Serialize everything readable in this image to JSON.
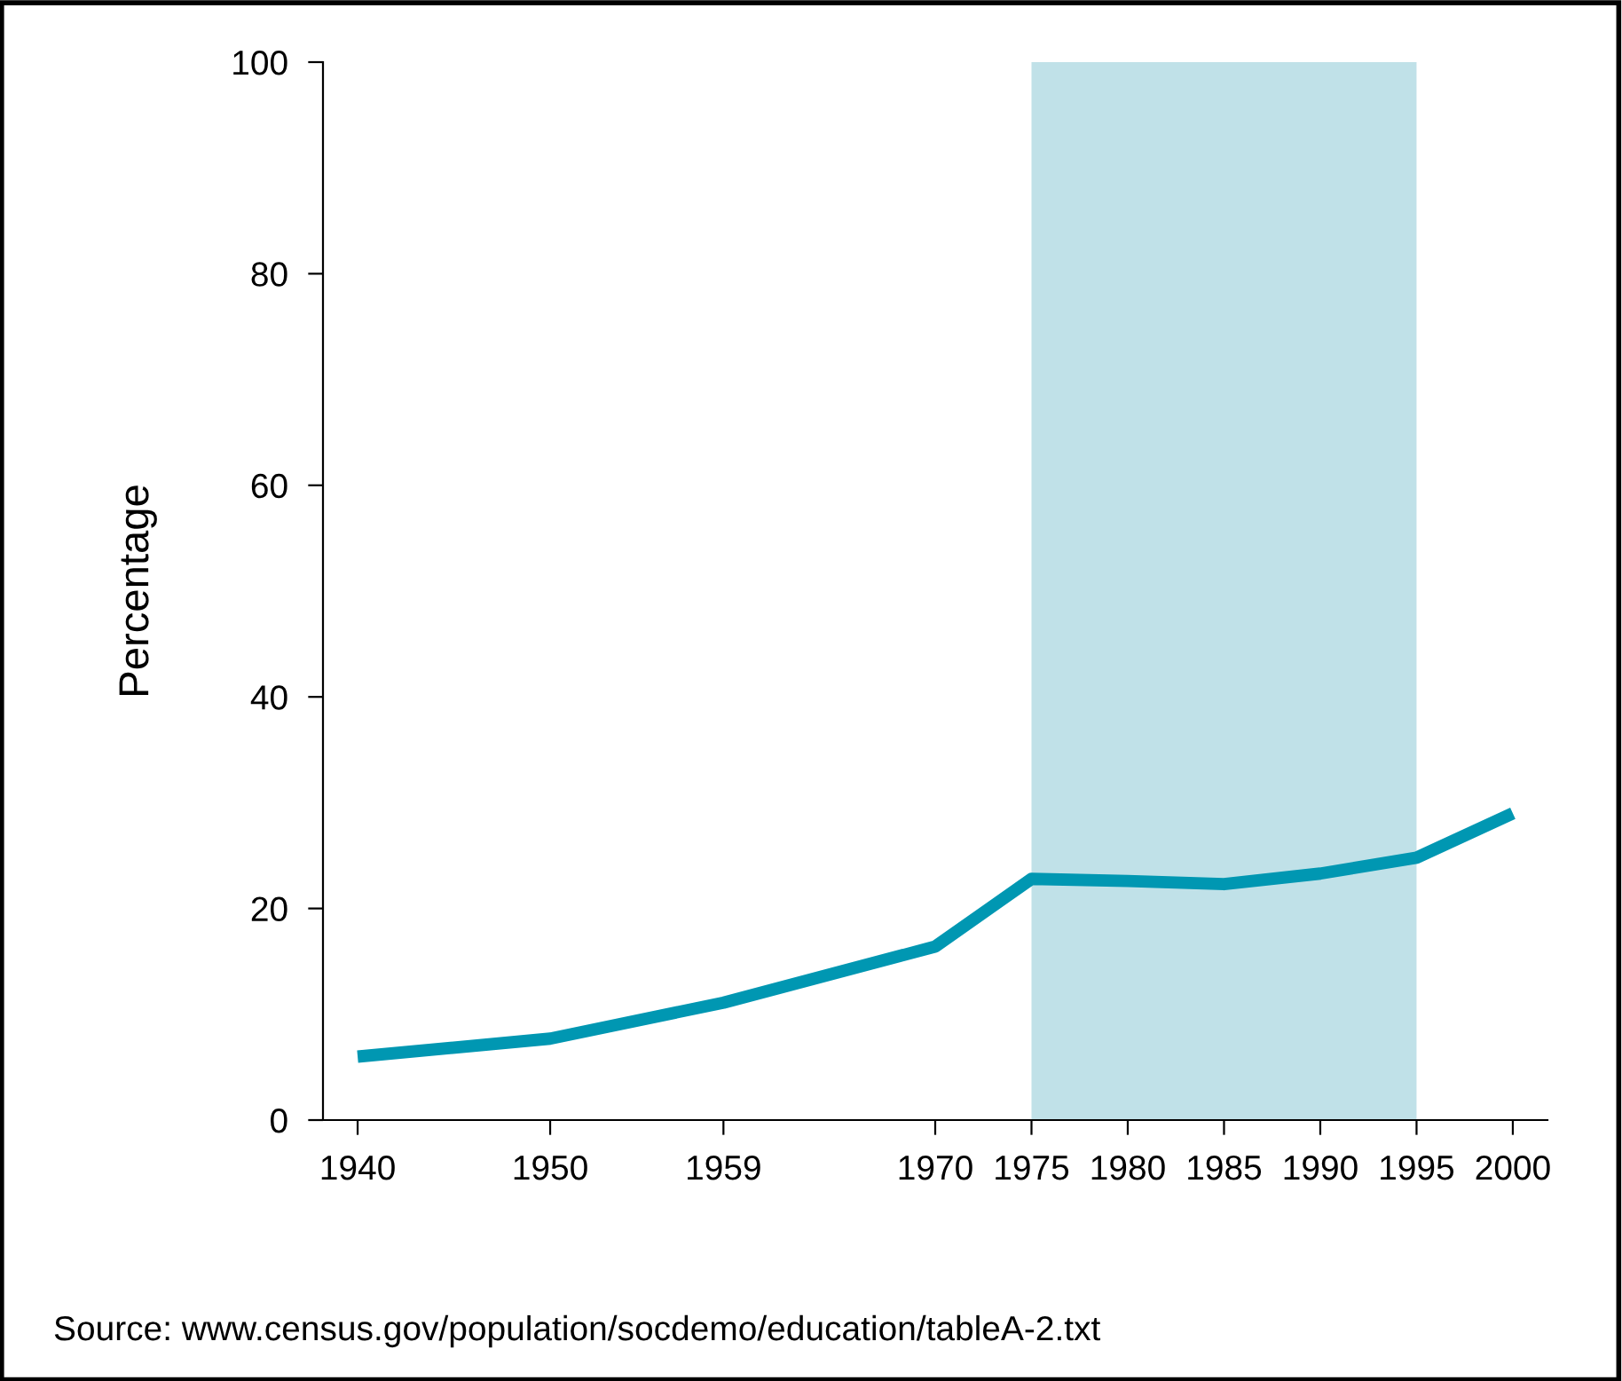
{
  "chart_data": {
    "type": "line",
    "ylabel": "Percentage",
    "x": [
      1940,
      1950,
      1959,
      1970,
      1975,
      1980,
      1985,
      1990,
      1995,
      2000
    ],
    "series": [
      {
        "color": "#0097b2",
        "values": [
          6.0,
          7.7,
          11.1,
          16.4,
          22.8,
          22.6,
          22.3,
          23.3,
          24.8,
          29.0
        ]
      }
    ],
    "xlim": [
      1938.2,
      2001.8
    ],
    "xticks": [
      1940,
      1950,
      1959,
      1970,
      1975,
      1980,
      1985,
      1990,
      1995,
      2000
    ],
    "ylim": [
      0,
      100
    ],
    "yticks": [
      0,
      20,
      40,
      60,
      80,
      100
    ],
    "bands": [
      {
        "axis": "x",
        "from": 1975,
        "to": 1995,
        "color": "#c0e1e8"
      }
    ],
    "grid": false,
    "legend": false,
    "annotations": [
      "Source: www.census.gov/population/socdemo/education/tableA-2.txt"
    ]
  }
}
